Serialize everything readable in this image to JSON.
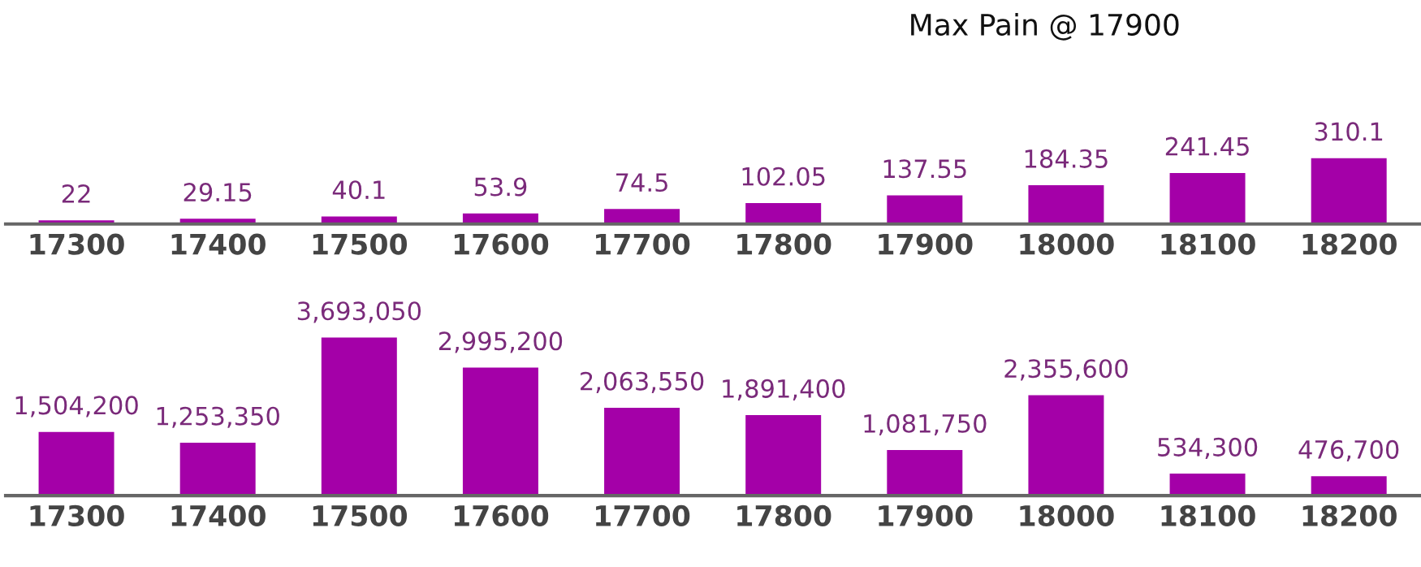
{
  "chart_data": [
    {
      "type": "bar",
      "title": "Max Pain @ 17900",
      "categories": [
        "17300",
        "17400",
        "17500",
        "17600",
        "17700",
        "17800",
        "17900",
        "18000",
        "18100",
        "18200"
      ],
      "color": "#a400a8",
      "values": [
        22,
        29.15,
        40.1,
        53.9,
        74.5,
        102.05,
        137.55,
        184.35,
        241.45,
        310.1
      ],
      "value_labels": [
        "22",
        "29.15",
        "40.1",
        "53.9",
        "74.5",
        "102.05",
        "137.55",
        "184.35",
        "241.45",
        "310.1"
      ],
      "tick_labels": "x"
    },
    {
      "type": "bar",
      "categories": [
        "17300",
        "17400",
        "17500",
        "17600",
        "17700",
        "17800",
        "17900",
        "18000",
        "18100",
        "18200"
      ],
      "color": "#a400a8",
      "values": [
        1504200,
        1253350,
        3693050,
        2995200,
        2063550,
        1891400,
        1081750,
        2355600,
        534300,
        476700
      ],
      "value_labels": [
        "1,504,200",
        "1,253,350",
        "3,693,050",
        "2,995,200",
        "2,063,550",
        "1,891,400",
        "1,081,750",
        "2,355,600",
        "534,300",
        "476,700"
      ],
      "tick_labels": "x"
    }
  ]
}
